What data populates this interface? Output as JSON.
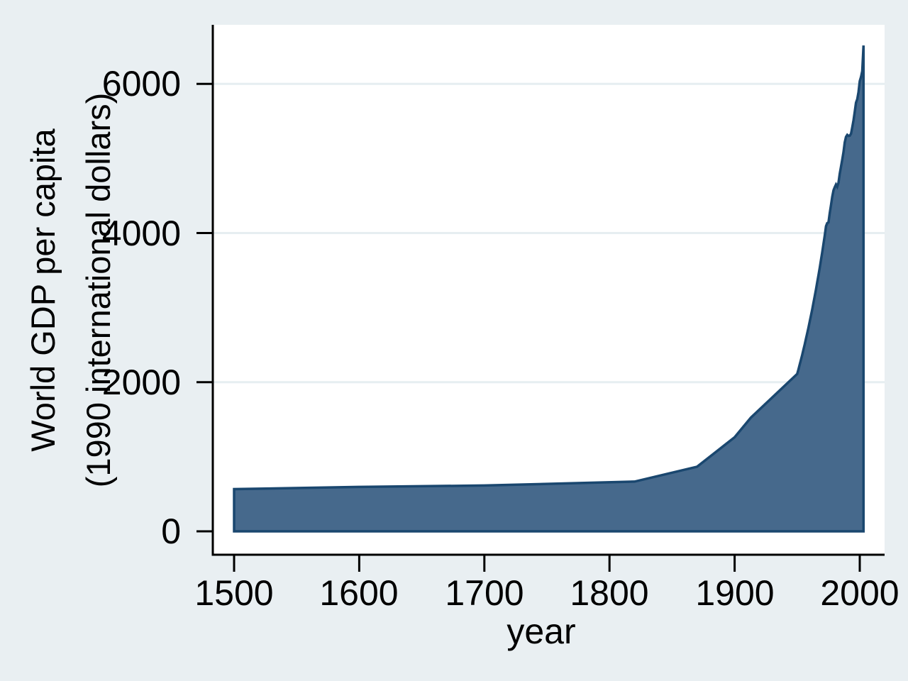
{
  "chart_data": {
    "type": "area",
    "title": "",
    "xlabel": "year",
    "ylabel_lines": [
      "World GDP per capita",
      "(1990 international dollars)"
    ],
    "x_ticks": [
      1500,
      1600,
      1700,
      1800,
      1900,
      2000
    ],
    "y_ticks": [
      0,
      2000,
      4000,
      6000
    ],
    "xlim": [
      1500,
      2003
    ],
    "ylim": [
      0,
      6516
    ],
    "grid": true,
    "legend": "none",
    "series": [
      {
        "name": "World GDP per capita (1990 international dollars)",
        "points": [
          [
            1500,
            566
          ],
          [
            1600,
            596
          ],
          [
            1700,
            615
          ],
          [
            1820,
            667
          ],
          [
            1870,
            867
          ],
          [
            1900,
            1261
          ],
          [
            1913,
            1525
          ],
          [
            1950,
            2111
          ],
          [
            1951,
            2172
          ],
          [
            1952,
            2235
          ],
          [
            1953,
            2300
          ],
          [
            1954,
            2367
          ],
          [
            1955,
            2436
          ],
          [
            1956,
            2507
          ],
          [
            1957,
            2580
          ],
          [
            1958,
            2655
          ],
          [
            1959,
            2732
          ],
          [
            1960,
            2811
          ],
          [
            1961,
            2893
          ],
          [
            1962,
            2977
          ],
          [
            1963,
            3064
          ],
          [
            1964,
            3153
          ],
          [
            1965,
            3244
          ],
          [
            1966,
            3338
          ],
          [
            1967,
            3435
          ],
          [
            1968,
            3535
          ],
          [
            1969,
            3637
          ],
          [
            1970,
            3743
          ],
          [
            1971,
            3852
          ],
          [
            1972,
            3964
          ],
          [
            1973,
            4091
          ],
          [
            1974,
            4133
          ],
          [
            1975,
            4143
          ],
          [
            1976,
            4270
          ],
          [
            1977,
            4371
          ],
          [
            1978,
            4486
          ],
          [
            1979,
            4573
          ],
          [
            1980,
            4614
          ],
          [
            1981,
            4651
          ],
          [
            1982,
            4622
          ],
          [
            1983,
            4675
          ],
          [
            1984,
            4797
          ],
          [
            1985,
            4887
          ],
          [
            1986,
            4984
          ],
          [
            1987,
            5088
          ],
          [
            1988,
            5215
          ],
          [
            1989,
            5290
          ],
          [
            1990,
            5317
          ],
          [
            1991,
            5303
          ],
          [
            1992,
            5306
          ],
          [
            1993,
            5332
          ],
          [
            1994,
            5417
          ],
          [
            1995,
            5513
          ],
          [
            1996,
            5625
          ],
          [
            1997,
            5749
          ],
          [
            1998,
            5796
          ],
          [
            1999,
            5889
          ],
          [
            2000,
            6038
          ],
          [
            2001,
            6095
          ],
          [
            2002,
            6172
          ],
          [
            2003,
            6516
          ]
        ]
      }
    ],
    "colors": {
      "area_fill": "#46698c",
      "area_line": "#1a476f",
      "background": "#e9eff2",
      "plot_background": "#ffffff",
      "gridline": "#e6eef1",
      "axis": "#000000"
    }
  }
}
